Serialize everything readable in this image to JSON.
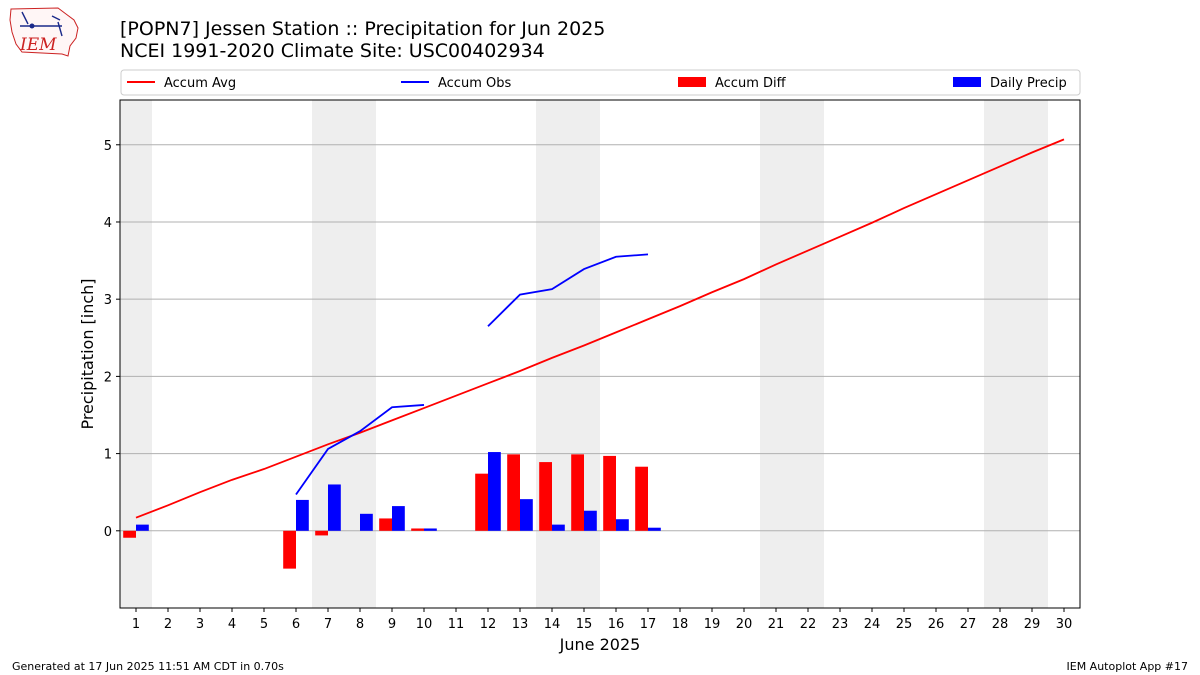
{
  "header": {
    "logo_text": "IEM",
    "title_line1": "[POPN7] Jessen Station :: Precipitation for Jun 2025",
    "title_line2": "NCEI 1991-2020 Climate Site: USC00402934"
  },
  "footer": {
    "generated": "Generated at 17 Jun 2025 11:51 AM CDT in 0.70s",
    "app": "IEM Autoplot App #17"
  },
  "colors": {
    "avg": "#ff0000",
    "obs": "#0000ff",
    "diff": "#ff0000",
    "daily": "#0000ff",
    "weekend_shade": "#eeeeee",
    "grid": "#b0b0b0"
  },
  "chart_data": {
    "type": "bar",
    "xlabel": "June 2025",
    "ylabel": "Precipitation [inch]",
    "xlim": [
      0.5,
      30.5
    ],
    "ylim": [
      -1.0,
      5.58
    ],
    "y_ticks": [
      0,
      1,
      2,
      3,
      4,
      5
    ],
    "x_ticks": [
      1,
      2,
      3,
      4,
      5,
      6,
      7,
      8,
      9,
      10,
      11,
      12,
      13,
      14,
      15,
      16,
      17,
      18,
      19,
      20,
      21,
      22,
      23,
      24,
      25,
      26,
      27,
      28,
      29,
      30
    ],
    "grid": "horizontal",
    "legend_placement": "top, above plot",
    "legend": [
      "Accum Avg",
      "Accum Obs",
      "Accum Diff",
      "Daily Precip"
    ],
    "shaded_weekends": [
      [
        0.5,
        1.5
      ],
      [
        6.5,
        8.5
      ],
      [
        13.5,
        15.5
      ],
      [
        20.5,
        22.5
      ],
      [
        27.5,
        29.5
      ]
    ],
    "series": [
      {
        "name": "Accum Avg",
        "type": "line",
        "x": [
          1,
          2,
          3,
          4,
          5,
          6,
          7,
          8,
          9,
          10,
          11,
          12,
          13,
          14,
          15,
          16,
          17,
          18,
          19,
          20,
          21,
          22,
          23,
          24,
          25,
          26,
          27,
          28,
          29,
          30
        ],
        "values": [
          0.17,
          0.33,
          0.5,
          0.66,
          0.8,
          0.96,
          1.12,
          1.27,
          1.43,
          1.59,
          1.75,
          1.91,
          2.07,
          2.24,
          2.4,
          2.57,
          2.74,
          2.91,
          3.09,
          3.26,
          3.45,
          3.63,
          3.81,
          3.99,
          4.18,
          4.36,
          4.54,
          4.72,
          4.9,
          5.07
        ]
      },
      {
        "name": "Accum Obs",
        "type": "line",
        "segments": [
          {
            "x": [
              6,
              7,
              8,
              9,
              10
            ],
            "values": [
              0.47,
              1.06,
              1.29,
              1.6,
              1.63
            ]
          },
          {
            "x": [
              12,
              13,
              14,
              15,
              16,
              17
            ],
            "values": [
              2.65,
              3.06,
              3.13,
              3.39,
              3.55,
              3.58
            ]
          }
        ]
      },
      {
        "name": "Accum Diff",
        "type": "bar",
        "x": [
          1,
          6,
          7,
          9,
          10,
          12,
          13,
          14,
          15,
          16,
          17
        ],
        "values": [
          -0.09,
          -0.49,
          -0.06,
          0.16,
          0.03,
          0.74,
          0.99,
          0.89,
          0.99,
          0.97,
          0.83
        ]
      },
      {
        "name": "Daily Precip",
        "type": "bar",
        "x": [
          1,
          6,
          7,
          8,
          9,
          10,
          12,
          13,
          14,
          15,
          16,
          17
        ],
        "values": [
          0.08,
          0.4,
          0.6,
          0.22,
          0.32,
          0.03,
          1.02,
          0.41,
          0.08,
          0.26,
          0.15,
          0.04
        ]
      }
    ]
  }
}
